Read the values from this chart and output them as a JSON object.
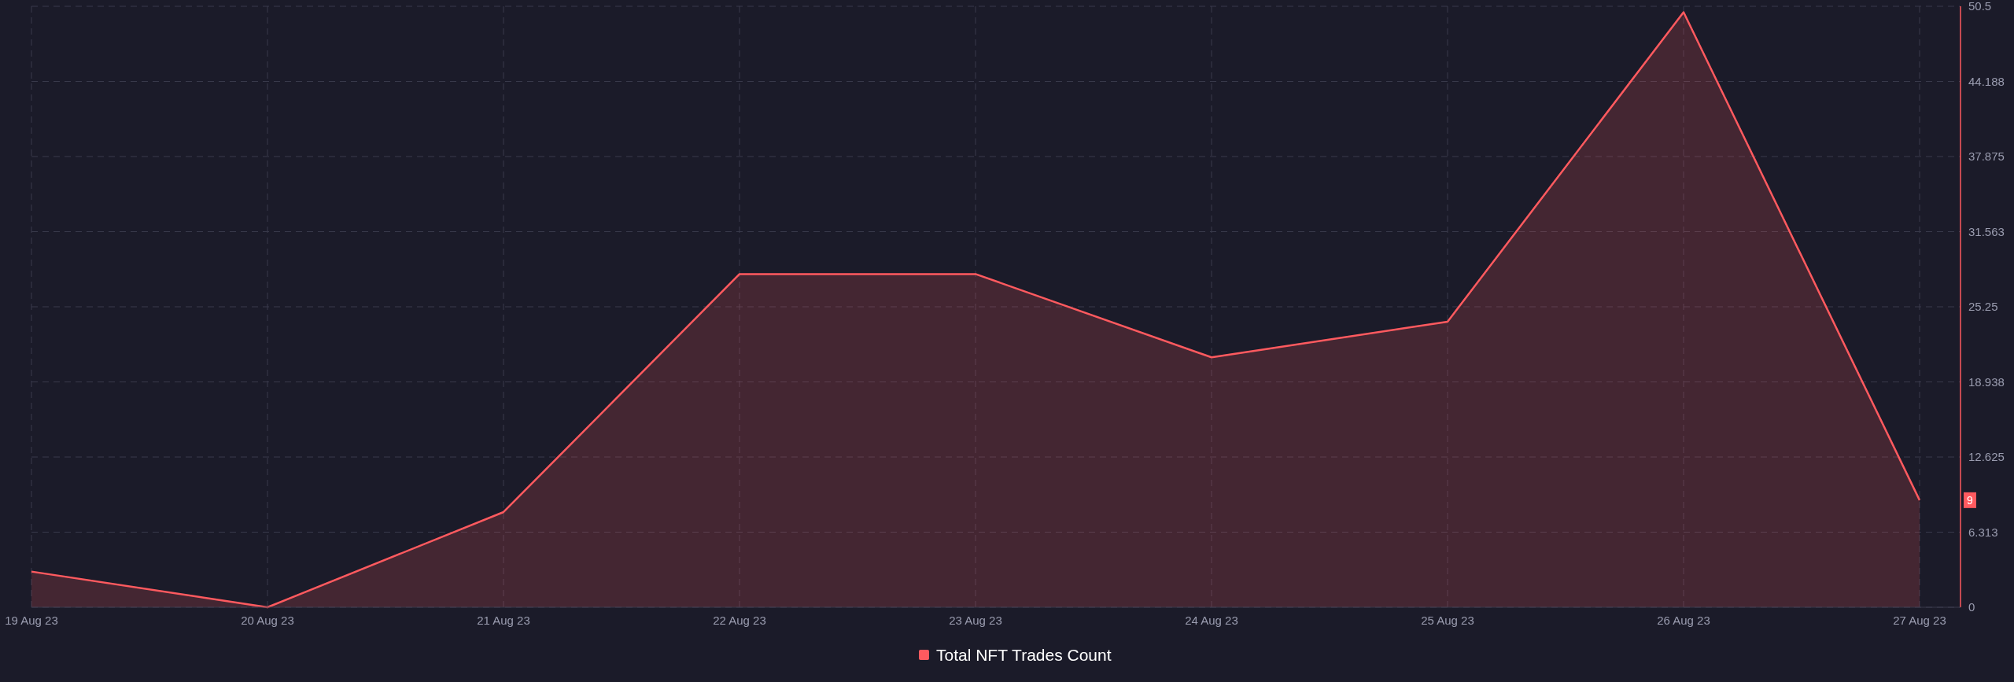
{
  "chart_data": {
    "type": "area",
    "categories": [
      "19 Aug 23",
      "20 Aug 23",
      "21 Aug 23",
      "22 Aug 23",
      "23 Aug 23",
      "24 Aug 23",
      "25 Aug 23",
      "26 Aug 23",
      "27 Aug 23"
    ],
    "series": [
      {
        "name": "Total NFT Trades Count",
        "color": "#ff5a5f",
        "values": [
          3,
          0,
          8,
          28,
          28,
          21,
          24,
          50,
          9
        ]
      }
    ],
    "ylim": [
      0,
      50.5
    ],
    "yticks": [
      0,
      6.313,
      12.625,
      18.938,
      25.25,
      31.563,
      37.875,
      44.188,
      50.5
    ],
    "grid": true,
    "legend": "bottom",
    "annotations": [
      "9"
    ]
  }
}
